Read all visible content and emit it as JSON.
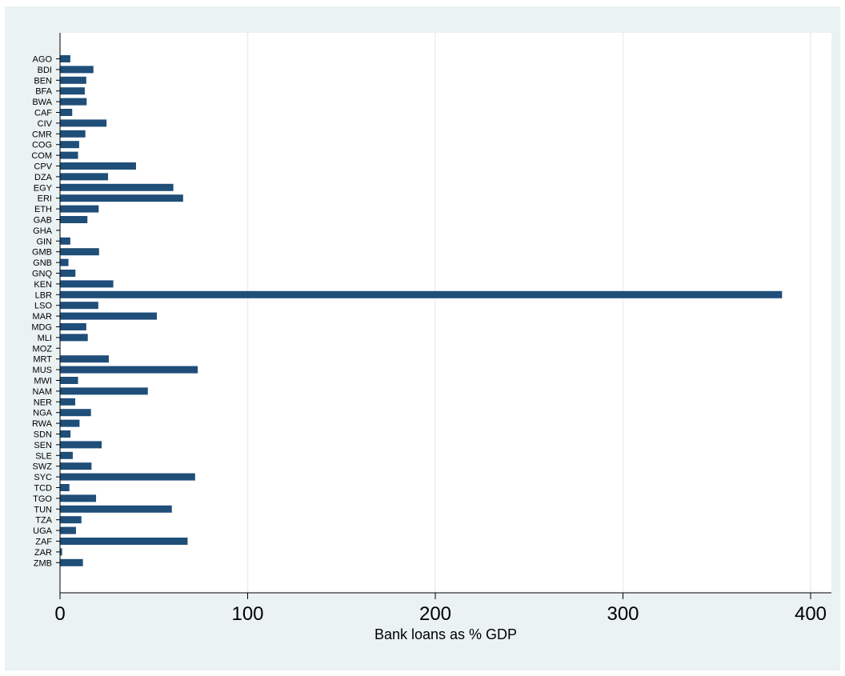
{
  "chart_data": {
    "type": "bar",
    "orientation": "horizontal",
    "title": "",
    "xlabel": "Bank loans as % GDP",
    "ylabel": "",
    "xlim": [
      0,
      410
    ],
    "xticks": [
      0,
      100,
      200,
      300,
      400
    ],
    "grid": true,
    "bar_color": "#1f4e79",
    "background_color": "#eaf2f3",
    "categories": [
      "AGO",
      "BDI",
      "BEN",
      "BFA",
      "BWA",
      "CAF",
      "CIV",
      "CMR",
      "COG",
      "COM",
      "CPV",
      "DZA",
      "EGY",
      "ERI",
      "ETH",
      "GAB",
      "GHA",
      "GIN",
      "GMB",
      "GNB",
      "GNQ",
      "KEN",
      "LBR",
      "LSO",
      "MAR",
      "MDG",
      "MLI",
      "MOZ",
      "MRT",
      "MUS",
      "MWI",
      "NAM",
      "NER",
      "NGA",
      "RWA",
      "SDN",
      "SEN",
      "SLE",
      "SWZ",
      "SYC",
      "TCD",
      "TGO",
      "TUN",
      "TZA",
      "UGA",
      "ZAF",
      "ZAR",
      "ZMB"
    ],
    "values": [
      5.5,
      17.8,
      14.0,
      13.2,
      14.2,
      6.5,
      24.8,
      13.5,
      10.2,
      9.6,
      40.5,
      25.6,
      60.4,
      65.6,
      20.6,
      14.6,
      0,
      5.5,
      20.8,
      4.5,
      8.2,
      28.4,
      384.8,
      20.4,
      51.6,
      14.0,
      14.8,
      0,
      26.0,
      73.4,
      9.6,
      46.8,
      8.1,
      16.5,
      10.4,
      5.6,
      22.2,
      6.8,
      16.8,
      72.0,
      5.0,
      19.2,
      59.6,
      11.4,
      8.5,
      68.0,
      1.1,
      12.2
    ]
  }
}
